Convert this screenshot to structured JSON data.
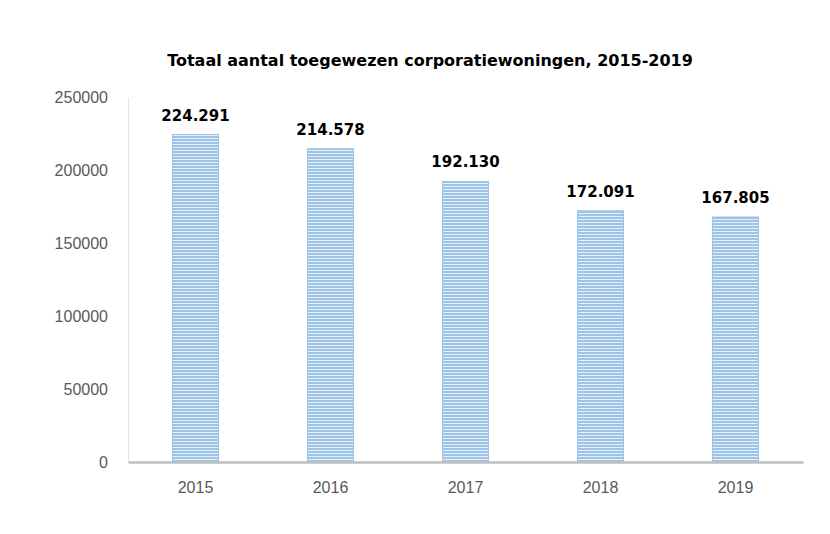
{
  "chart_data": {
    "type": "bar",
    "title": "Totaal aantal toegewezen corporatiewoningen, 2015-2019",
    "categories": [
      "2015",
      "2016",
      "2017",
      "2018",
      "2019"
    ],
    "values": [
      224291,
      214578,
      192130,
      172091,
      167805
    ],
    "value_labels": [
      "224.291",
      "214.578",
      "192.130",
      "172.091",
      "167.805"
    ],
    "color": "#9dc3e6",
    "ylim": [
      0,
      250000
    ],
    "yticks": [
      0,
      50000,
      100000,
      150000,
      200000,
      250000
    ],
    "grid": false,
    "data_labels": true
  }
}
